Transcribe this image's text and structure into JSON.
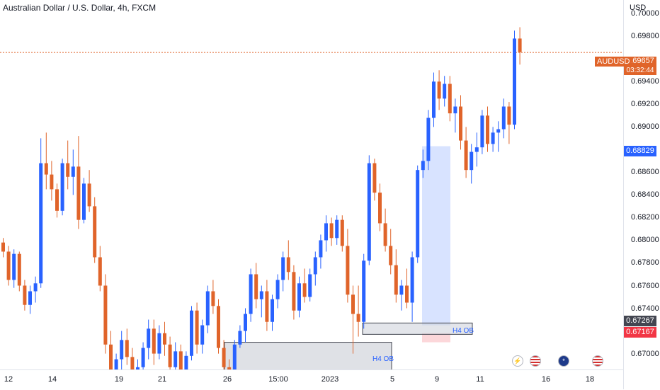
{
  "header": {
    "title": "Australian Dollar / U.S. Dollar, 4h, FXCM"
  },
  "price_axis": {
    "currency": "USD",
    "ticks": [
      "0.70000",
      "0.69800",
      "0.69400",
      "0.69200",
      "0.69000",
      "0.68600",
      "0.68400",
      "0.68200",
      "0.68000",
      "0.67800",
      "0.67600",
      "0.67400",
      "0.67000"
    ]
  },
  "price_labels": {
    "symbol": "AUDUSD",
    "last": "0.69657",
    "countdown": "03:32:44",
    "crosshair": "0.68829",
    "ob_top": "0.67267",
    "ob_bottom": "0.67167"
  },
  "time_axis": {
    "ticks": [
      "12",
      "14",
      "19",
      "21",
      "26",
      "15:00",
      "2023",
      "5",
      "9",
      "11",
      "16",
      "18"
    ]
  },
  "zones": [
    {
      "label": "H4 OB"
    },
    {
      "label": "H4 OB"
    }
  ],
  "colors": {
    "up": "#2962ff",
    "down": "#e0642a",
    "accent": "#e0642a",
    "crosshair": "#2962ff",
    "ob_fill": "#d1d4dc"
  },
  "icons": [
    "lightning-icon",
    "us-flag-icon",
    "au-flag-icon",
    "us-flag-icon"
  ],
  "chart_data": {
    "type": "candlestick",
    "symbol": "AUDUSD",
    "interval": "4h",
    "ylim": [
      0.6686,
      0.7012
    ],
    "y_label_price": 0.69657,
    "candles": [
      [
        0.6798,
        0.6802,
        0.6785,
        0.679
      ],
      [
        0.679,
        0.6795,
        0.676,
        0.6765
      ],
      [
        0.6765,
        0.6792,
        0.6758,
        0.6788
      ],
      [
        0.6788,
        0.679,
        0.6755,
        0.676
      ],
      [
        0.676,
        0.6765,
        0.6738,
        0.6743
      ],
      [
        0.6743,
        0.676,
        0.6735,
        0.6755
      ],
      [
        0.6755,
        0.6768,
        0.6745,
        0.6762
      ],
      [
        0.6762,
        0.689,
        0.6758,
        0.6868
      ],
      [
        0.6868,
        0.6895,
        0.6845,
        0.6858
      ],
      [
        0.6858,
        0.687,
        0.6835,
        0.6845
      ],
      [
        0.6845,
        0.685,
        0.682,
        0.6826
      ],
      [
        0.6826,
        0.6872,
        0.6822,
        0.6868
      ],
      [
        0.6868,
        0.6888,
        0.6845,
        0.6856
      ],
      [
        0.6856,
        0.688,
        0.684,
        0.6865
      ],
      [
        0.6865,
        0.6892,
        0.681,
        0.6818
      ],
      [
        0.6818,
        0.6855,
        0.6815,
        0.685
      ],
      [
        0.685,
        0.6862,
        0.6825,
        0.683
      ],
      [
        0.683,
        0.6838,
        0.678,
        0.6785
      ],
      [
        0.6785,
        0.6795,
        0.6755,
        0.676
      ],
      [
        0.676,
        0.677,
        0.67,
        0.6708
      ],
      [
        0.6708,
        0.672,
        0.6665,
        0.6672
      ],
      [
        0.6672,
        0.67,
        0.6668,
        0.6695
      ],
      [
        0.6695,
        0.672,
        0.6685,
        0.6712
      ],
      [
        0.6712,
        0.6722,
        0.669,
        0.6697
      ],
      [
        0.6697,
        0.6705,
        0.667,
        0.6678
      ],
      [
        0.6678,
        0.6695,
        0.666,
        0.6688
      ],
      [
        0.6688,
        0.671,
        0.6682,
        0.6705
      ],
      [
        0.6705,
        0.673,
        0.6695,
        0.6722
      ],
      [
        0.6722,
        0.673,
        0.669,
        0.67
      ],
      [
        0.67,
        0.6725,
        0.6695,
        0.6718
      ],
      [
        0.6718,
        0.6728,
        0.6698,
        0.6708
      ],
      [
        0.6708,
        0.6715,
        0.668,
        0.6688
      ],
      [
        0.6688,
        0.671,
        0.668,
        0.6702
      ],
      [
        0.6702,
        0.6708,
        0.6665,
        0.667
      ],
      [
        0.667,
        0.6702,
        0.6666,
        0.6698
      ],
      [
        0.6698,
        0.6742,
        0.6694,
        0.6738
      ],
      [
        0.6738,
        0.6745,
        0.67,
        0.6708
      ],
      [
        0.6708,
        0.673,
        0.67,
        0.6725
      ],
      [
        0.6725,
        0.676,
        0.6718,
        0.6755
      ],
      [
        0.6755,
        0.6765,
        0.6735,
        0.6742
      ],
      [
        0.6742,
        0.6748,
        0.67,
        0.6705
      ],
      [
        0.6705,
        0.6712,
        0.668,
        0.6688
      ],
      [
        0.6688,
        0.6695,
        0.667,
        0.668
      ],
      [
        0.668,
        0.6712,
        0.6676,
        0.6708
      ],
      [
        0.6708,
        0.6725,
        0.6705,
        0.672
      ],
      [
        0.672,
        0.674,
        0.671,
        0.6735
      ],
      [
        0.6735,
        0.6775,
        0.6728,
        0.677
      ],
      [
        0.677,
        0.678,
        0.674,
        0.6748
      ],
      [
        0.6748,
        0.676,
        0.6732,
        0.6755
      ],
      [
        0.6755,
        0.6765,
        0.672,
        0.6728
      ],
      [
        0.6728,
        0.6752,
        0.672,
        0.6748
      ],
      [
        0.6748,
        0.677,
        0.674,
        0.6765
      ],
      [
        0.6765,
        0.679,
        0.6755,
        0.6785
      ],
      [
        0.6785,
        0.68,
        0.6765,
        0.6772
      ],
      [
        0.6772,
        0.6778,
        0.673,
        0.6738
      ],
      [
        0.6738,
        0.6768,
        0.6732,
        0.6762
      ],
      [
        0.6762,
        0.6775,
        0.6745,
        0.675
      ],
      [
        0.675,
        0.6775,
        0.6746,
        0.677
      ],
      [
        0.677,
        0.679,
        0.676,
        0.6785
      ],
      [
        0.6785,
        0.6805,
        0.6775,
        0.68
      ],
      [
        0.68,
        0.6822,
        0.679,
        0.6815
      ],
      [
        0.6815,
        0.682,
        0.6795,
        0.6802
      ],
      [
        0.6802,
        0.6822,
        0.6796,
        0.6818
      ],
      [
        0.6818,
        0.6822,
        0.679,
        0.6795
      ],
      [
        0.6795,
        0.681,
        0.6745,
        0.6752
      ],
      [
        0.6752,
        0.676,
        0.67,
        0.6735
      ],
      [
        0.6735,
        0.676,
        0.6715,
        0.6728
      ],
      [
        0.6728,
        0.6788,
        0.6722,
        0.6782
      ],
      [
        0.6782,
        0.6875,
        0.6778,
        0.6868
      ],
      [
        0.6868,
        0.6872,
        0.6835,
        0.6842
      ],
      [
        0.6842,
        0.685,
        0.6808,
        0.6815
      ],
      [
        0.6815,
        0.6828,
        0.679,
        0.6795
      ],
      [
        0.6795,
        0.681,
        0.677,
        0.6778
      ],
      [
        0.6778,
        0.6792,
        0.6745,
        0.6752
      ],
      [
        0.6752,
        0.6765,
        0.6738,
        0.676
      ],
      [
        0.676,
        0.6775,
        0.674,
        0.6745
      ],
      [
        0.6745,
        0.679,
        0.6728,
        0.6785
      ],
      [
        0.6785,
        0.6866,
        0.678,
        0.6862
      ],
      [
        0.6862,
        0.688,
        0.6855,
        0.687
      ],
      [
        0.687,
        0.6915,
        0.6862,
        0.6908
      ],
      [
        0.6908,
        0.6948,
        0.69,
        0.694
      ],
      [
        0.694,
        0.695,
        0.6915,
        0.6925
      ],
      [
        0.6925,
        0.6945,
        0.6918,
        0.6938
      ],
      [
        0.6938,
        0.6945,
        0.6905,
        0.6912
      ],
      [
        0.6912,
        0.6925,
        0.6895,
        0.6918
      ],
      [
        0.6918,
        0.6928,
        0.688,
        0.6888
      ],
      [
        0.6888,
        0.69,
        0.6855,
        0.6862
      ],
      [
        0.6862,
        0.6885,
        0.685,
        0.6878
      ],
      [
        0.6878,
        0.6895,
        0.6865,
        0.6882
      ],
      [
        0.6882,
        0.6915,
        0.6876,
        0.691
      ],
      [
        0.691,
        0.6918,
        0.6878,
        0.6885
      ],
      [
        0.6885,
        0.69,
        0.6878,
        0.6895
      ],
      [
        0.6895,
        0.6905,
        0.6878,
        0.6898
      ],
      [
        0.6898,
        0.6925,
        0.689,
        0.6918
      ],
      [
        0.6918,
        0.6922,
        0.6885,
        0.6902
      ],
      [
        0.6902,
        0.6985,
        0.6898,
        0.6978
      ],
      [
        0.6978,
        0.6988,
        0.6955,
        0.6966
      ]
    ]
  }
}
